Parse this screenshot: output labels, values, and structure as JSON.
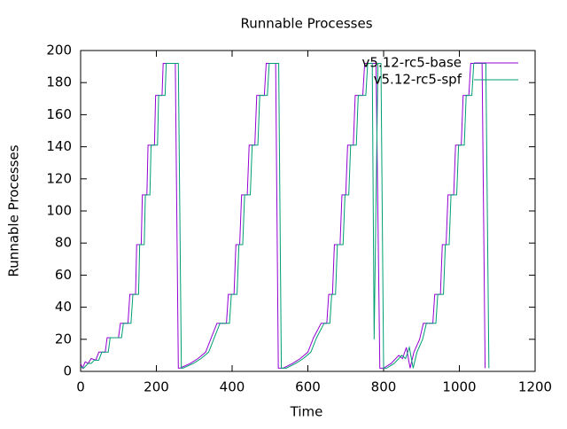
{
  "chart_data": {
    "type": "line",
    "title": "Runnable Processes",
    "xlabel": "Time",
    "ylabel": "Runnable Processes",
    "xlim": [
      0,
      1200
    ],
    "xticks": [
      0,
      200,
      400,
      600,
      800,
      1000,
      1200
    ],
    "ylim": [
      0,
      200
    ],
    "yticks": [
      0,
      20,
      40,
      60,
      80,
      100,
      120,
      140,
      160,
      180,
      200
    ],
    "legend": "top-right",
    "grid": false,
    "series": [
      {
        "name": "v5.12-rc5-base",
        "color": "#9400d3",
        "x": [
          0,
          5,
          12,
          20,
          28,
          40,
          48,
          65,
          70,
          100,
          105,
          125,
          130,
          145,
          148,
          160,
          163,
          175,
          178,
          195,
          198,
          215,
          218,
          250,
          258,
          262,
          290,
          310,
          330,
          345,
          360,
          385,
          390,
          405,
          410,
          420,
          425,
          440,
          445,
          460,
          465,
          485,
          490,
          515,
          522,
          535,
          560,
          580,
          600,
          615,
          635,
          650,
          655,
          665,
          670,
          685,
          690,
          700,
          705,
          720,
          725,
          745,
          750,
          780,
          790,
          800,
          820,
          840,
          850,
          860,
          870,
          880,
          895,
          905,
          930,
          935,
          950,
          955,
          965,
          970,
          985,
          990,
          1005,
          1010,
          1025,
          1030,
          1060,
          1068
        ],
        "values": [
          5,
          2,
          6,
          5,
          8,
          7,
          12,
          12,
          21,
          21,
          30,
          30,
          48,
          48,
          79,
          79,
          110,
          110,
          141,
          141,
          172,
          172,
          192,
          192,
          2,
          2,
          5,
          8,
          12,
          21,
          30,
          30,
          48,
          48,
          79,
          79,
          110,
          110,
          141,
          141,
          172,
          172,
          192,
          192,
          2,
          2,
          5,
          8,
          12,
          21,
          30,
          30,
          48,
          48,
          79,
          79,
          110,
          110,
          141,
          141,
          172,
          172,
          192,
          192,
          2,
          2,
          5,
          10,
          8,
          15,
          2,
          12,
          20,
          30,
          30,
          48,
          48,
          79,
          79,
          110,
          110,
          141,
          141,
          172,
          172,
          192,
          192,
          2
        ]
      },
      {
        "name": "v5.12-rc5-spf",
        "color": "#009e73",
        "x": [
          0,
          8,
          20,
          28,
          36,
          48,
          56,
          73,
          78,
          108,
          113,
          133,
          138,
          153,
          156,
          168,
          171,
          183,
          186,
          203,
          206,
          223,
          226,
          258,
          266,
          270,
          298,
          318,
          338,
          353,
          368,
          393,
          398,
          413,
          418,
          428,
          433,
          448,
          453,
          468,
          473,
          493,
          498,
          523,
          530,
          543,
          568,
          588,
          608,
          623,
          643,
          658,
          663,
          673,
          678,
          693,
          698,
          708,
          713,
          728,
          733,
          753,
          758,
          770,
          775,
          785,
          793,
          800,
          808,
          828,
          848,
          858,
          868,
          878,
          888,
          903,
          913,
          938,
          943,
          958,
          963,
          973,
          978,
          993,
          998,
          1013,
          1018,
          1033,
          1038,
          1070,
          1078
        ],
        "values": [
          3,
          2,
          5,
          5,
          7,
          7,
          12,
          12,
          21,
          21,
          30,
          30,
          48,
          48,
          79,
          79,
          110,
          110,
          141,
          141,
          172,
          172,
          192,
          192,
          2,
          2,
          5,
          8,
          12,
          21,
          30,
          30,
          48,
          48,
          79,
          79,
          110,
          110,
          141,
          141,
          172,
          172,
          192,
          192,
          2,
          2,
          5,
          8,
          12,
          21,
          30,
          30,
          48,
          48,
          79,
          79,
          110,
          110,
          141,
          141,
          172,
          172,
          192,
          192,
          20,
          192,
          192,
          2,
          2,
          5,
          10,
          8,
          15,
          2,
          12,
          20,
          30,
          30,
          48,
          48,
          79,
          79,
          110,
          110,
          141,
          141,
          172,
          172,
          192,
          192,
          2
        ]
      }
    ]
  }
}
